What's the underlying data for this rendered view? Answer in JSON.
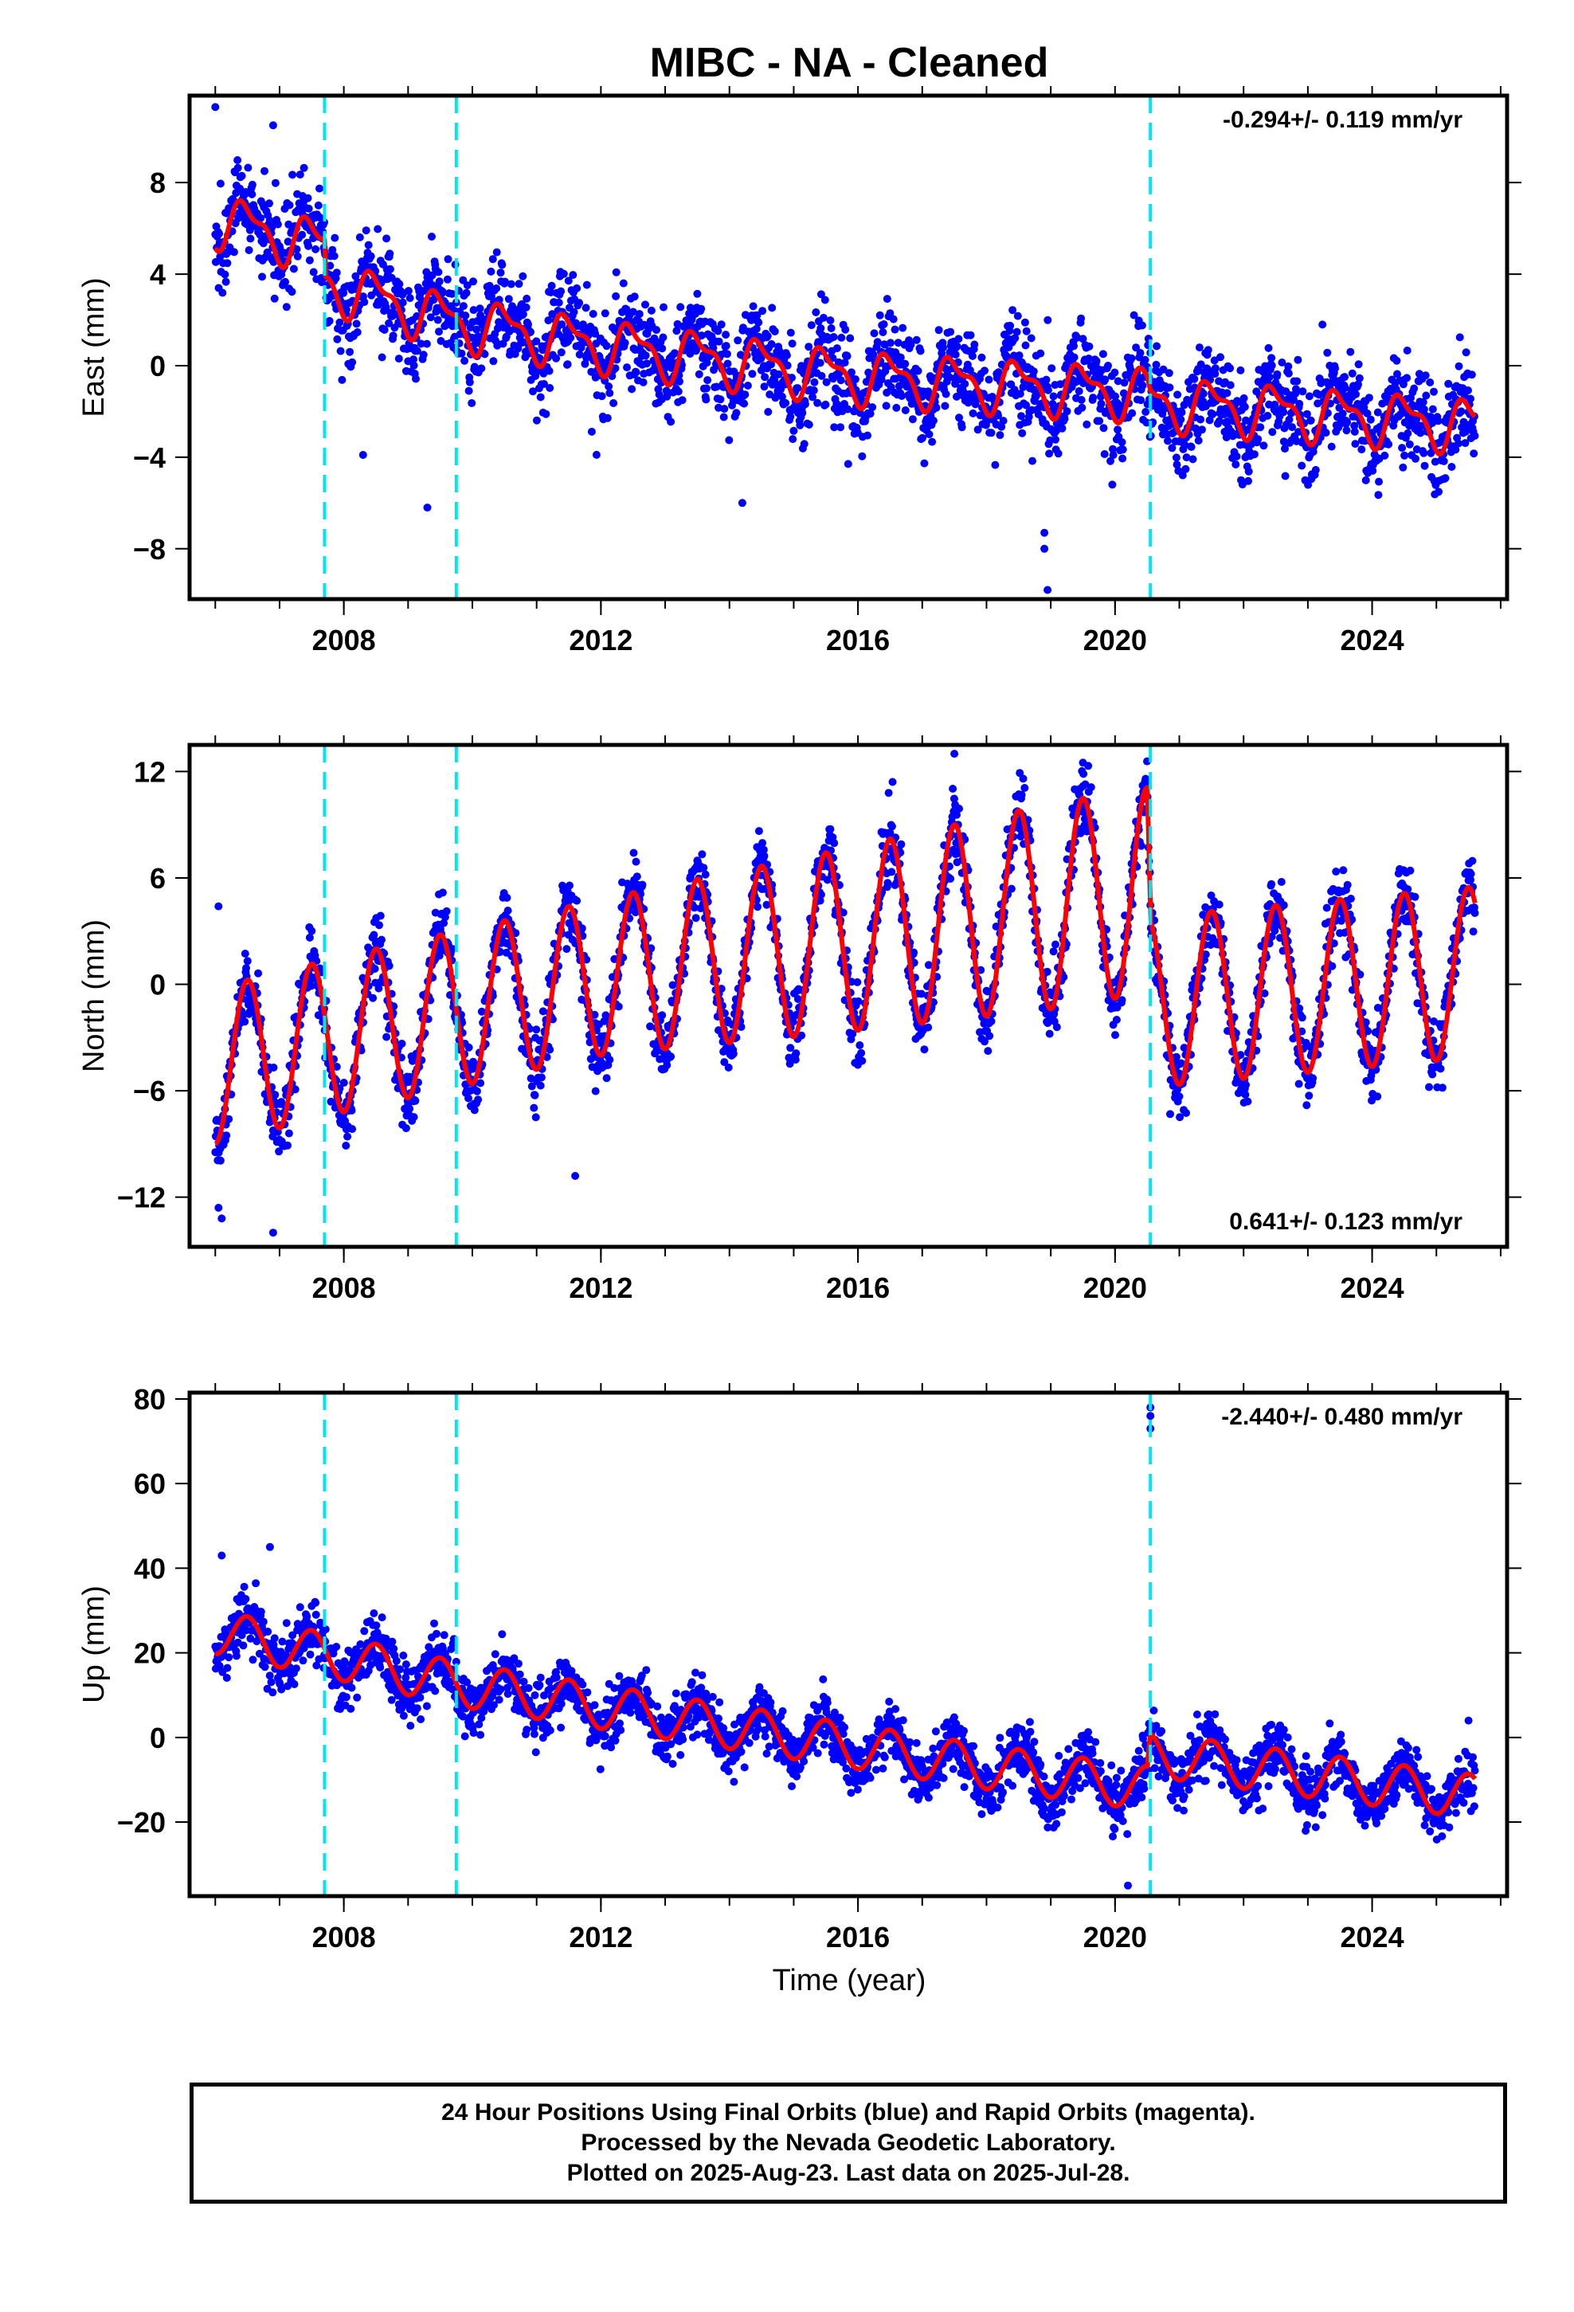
{
  "figure": {
    "title": "MIBC  - NA - Cleaned",
    "xlabel": "Time (year)"
  },
  "footer": {
    "lines": [
      "24 Hour Positions Using Final Orbits (blue) and Rapid Orbits (magenta).",
      "Processed by the Nevada Geodetic Laboratory.",
      "Plotted on 2025-Aug-23. Last data on 2025-Jul-28."
    ]
  },
  "colors": {
    "data_points": "#0000ff",
    "model_curve": "#ff0000",
    "event_lines": "#00e5ee",
    "frame": "#000000"
  },
  "chart_data": [
    {
      "type": "scatter",
      "component": "East",
      "ylabel": "East (mm)",
      "rate_label": "-0.294+/- 0.119 mm/yr",
      "rate_position": "top-right",
      "xlim": [
        2005.6,
        2026.1
      ],
      "ylim": [
        -10.2,
        11.8
      ],
      "yticks": [
        -8,
        -4,
        0,
        4,
        8
      ],
      "xticks": [
        2008,
        2012,
        2016,
        2020,
        2024
      ],
      "event_lines_x": [
        2007.7,
        2009.75,
        2020.55
      ],
      "model": {
        "start": 2006.0,
        "end": 2025.6,
        "trend": [
          [
            2006.0,
            6.4
          ],
          [
            2007.7,
            5.2
          ],
          [
            2007.72,
            3.6
          ],
          [
            2009.75,
            1.9
          ],
          [
            2012.0,
            0.9
          ],
          [
            2016.0,
            -0.5
          ],
          [
            2020.5,
            -1.2
          ],
          [
            2020.55,
            -1.6
          ],
          [
            2025.6,
            -2.6
          ]
        ],
        "annual_amplitude": 1.0,
        "semiannual_amplitude": 0.45
      },
      "points": {
        "scatter_sd": 1.05,
        "outliers": [
          [
            2006.0,
            11.3
          ],
          [
            2006.9,
            10.5
          ],
          [
            2009.3,
            -6.2
          ],
          [
            2014.2,
            -6.0
          ],
          [
            2018.9,
            -7.3
          ],
          [
            2018.9,
            -8.0
          ],
          [
            2018.95,
            -9.8
          ],
          [
            2008.3,
            -3.9
          ]
        ]
      }
    },
    {
      "type": "scatter",
      "component": "North",
      "ylabel": "North (mm)",
      "rate_label": "0.641+/- 0.123 mm/yr",
      "rate_position": "bottom-right",
      "xlim": [
        2005.6,
        2026.1
      ],
      "ylim": [
        -14.8,
        13.5
      ],
      "yticks": [
        -12,
        -6,
        0,
        6,
        12
      ],
      "xticks": [
        2008,
        2012,
        2016,
        2020,
        2024
      ],
      "event_lines_x": [
        2007.7,
        2009.75,
        2020.55
      ],
      "model": {
        "start": 2006.0,
        "end": 2025.6,
        "trend": [
          [
            2006.0,
            -4.6
          ],
          [
            2008.0,
            -2.8
          ],
          [
            2012.0,
            0.4
          ],
          [
            2016.0,
            2.6
          ],
          [
            2020.5,
            5.3
          ],
          [
            2020.55,
            -1.0
          ],
          [
            2025.6,
            0.7
          ]
        ],
        "annual_amplitude": 4.4,
        "annual_amplitude_late": 5.8,
        "semiannual_amplitude": 0.0
      },
      "points": {
        "scatter_sd": 1.0,
        "outliers": [
          [
            2006.05,
            4.4
          ],
          [
            2006.05,
            -12.6
          ],
          [
            2006.1,
            -13.2
          ],
          [
            2006.9,
            -14.0
          ],
          [
            2011.6,
            -10.8
          ],
          [
            2017.5,
            13.0
          ],
          [
            2019.5,
            12.5
          ]
        ]
      }
    },
    {
      "type": "scatter",
      "component": "Up",
      "ylabel": "Up (mm)",
      "rate_label": "-2.440+/- 0.480 mm/yr",
      "rate_position": "top-right",
      "xlim": [
        2005.6,
        2026.1
      ],
      "ylim": [
        -37.5,
        81.5
      ],
      "yticks": [
        -20,
        0,
        20,
        40,
        60,
        80
      ],
      "xticks": [
        2008,
        2012,
        2016,
        2020,
        2024
      ],
      "event_lines_x": [
        2007.7,
        2009.75,
        2020.55
      ],
      "model": {
        "start": 2006.0,
        "end": 2025.6,
        "trend": [
          [
            2006.0,
            25.0
          ],
          [
            2010.0,
            12.0
          ],
          [
            2014.0,
            2.5
          ],
          [
            2018.0,
            -7.0
          ],
          [
            2020.5,
            -12.0
          ],
          [
            2020.55,
            -4.0
          ],
          [
            2025.6,
            -14.0
          ]
        ],
        "annual_amplitude": 5.2,
        "semiannual_amplitude": 0.0
      },
      "points": {
        "scatter_sd": 3.4,
        "outliers": [
          [
            2020.55,
            78.0
          ],
          [
            2020.55,
            76.0
          ],
          [
            2020.55,
            73.0
          ],
          [
            2006.1,
            43.0
          ],
          [
            2006.85,
            45.0
          ],
          [
            2020.2,
            -35.0
          ],
          [
            2025.5,
            4.0
          ]
        ]
      }
    }
  ]
}
